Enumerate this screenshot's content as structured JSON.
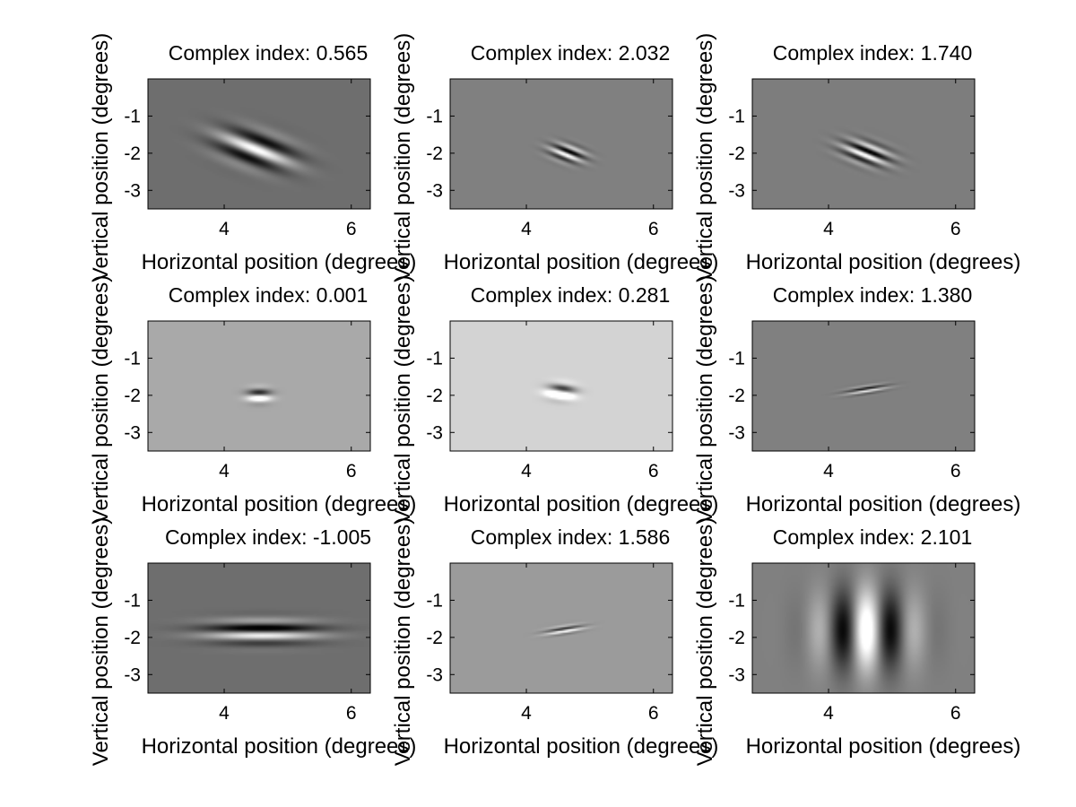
{
  "chart_data": [
    {
      "type": "heatmap",
      "title": "Complex index: 0.565",
      "xlabel": "Horizontal position (degrees)",
      "ylabel": "Vertical position (degrees)",
      "xlim": [
        2.8,
        6.3
      ],
      "ylim": [
        -3.5,
        0
      ],
      "xticks": [
        4,
        6
      ],
      "yticks": [
        -1,
        -2,
        -3
      ],
      "background": "#6e6e6e",
      "filter": {
        "center_x": 4.5,
        "center_y": -1.9,
        "sigma_major": 0.45,
        "sigma_minor": 0.28,
        "orientation_deg": -35,
        "wavelength": 0.55,
        "phase_deg": 0,
        "amplitude": 150
      }
    },
    {
      "type": "heatmap",
      "title": "Complex index: 2.032",
      "xlabel": "Horizontal position (degrees)",
      "ylabel": "Vertical position (degrees)",
      "xlim": [
        2.8,
        6.3
      ],
      "ylim": [
        -3.5,
        0
      ],
      "xticks": [
        4,
        6
      ],
      "yticks": [
        -1,
        -2,
        -3
      ],
      "background": "#808080",
      "filter": {
        "center_x": 4.65,
        "center_y": -2.0,
        "sigma_major": 0.2,
        "sigma_minor": 0.14,
        "orientation_deg": -35,
        "wavelength": 0.22,
        "phase_deg": 90,
        "amplitude": 160
      }
    },
    {
      "type": "heatmap",
      "title": "Complex index: 1.740",
      "xlabel": "Horizontal position (degrees)",
      "ylabel": "Vertical position (degrees)",
      "xlim": [
        2.8,
        6.3
      ],
      "ylim": [
        -3.5,
        0
      ],
      "xticks": [
        4,
        6
      ],
      "yticks": [
        -1,
        -2,
        -3
      ],
      "background": "#7d7d7d",
      "filter": {
        "center_x": 4.6,
        "center_y": -2.0,
        "sigma_major": 0.28,
        "sigma_minor": 0.18,
        "orientation_deg": -35,
        "wavelength": 0.25,
        "phase_deg": 90,
        "amplitude": 160
      }
    },
    {
      "type": "heatmap",
      "title": "Complex index: 0.001",
      "xlabel": "Horizontal position (degrees)",
      "ylabel": "Vertical position (degrees)",
      "xlim": [
        2.8,
        6.3
      ],
      "ylim": [
        -3.5,
        0
      ],
      "xticks": [
        4,
        6
      ],
      "yticks": [
        -1,
        -2,
        -3
      ],
      "background": "#a9a9a9",
      "filter": {
        "center_x": 4.55,
        "center_y": -2.0,
        "sigma_major": 0.13,
        "sigma_minor": 0.13,
        "orientation_deg": 0,
        "wavelength": 0.4,
        "phase_deg": 90,
        "amplitude": 170
      }
    },
    {
      "type": "heatmap",
      "title": "Complex index: 0.281",
      "xlabel": "Horizontal position (degrees)",
      "ylabel": "Vertical position (degrees)",
      "xlim": [
        2.8,
        6.3
      ],
      "ylim": [
        -3.5,
        0
      ],
      "xticks": [
        4,
        6
      ],
      "yticks": [
        -1,
        -2,
        -3
      ],
      "background": "#d3d3d3",
      "filter": {
        "center_x": 4.55,
        "center_y": -1.9,
        "sigma_major": 0.15,
        "sigma_minor": 0.14,
        "orientation_deg": -15,
        "wavelength": 0.45,
        "phase_deg": 90,
        "amplitude": 200
      }
    },
    {
      "type": "heatmap",
      "title": "Complex index: 1.380",
      "xlabel": "Horizontal position (degrees)",
      "ylabel": "Vertical position (degrees)",
      "xlim": [
        2.8,
        6.3
      ],
      "ylim": [
        -3.5,
        0
      ],
      "xticks": [
        4,
        6
      ],
      "yticks": [
        -1,
        -2,
        -3
      ],
      "background": "#808080",
      "filter": {
        "center_x": 4.6,
        "center_y": -1.85,
        "sigma_major": 0.22,
        "sigma_minor": 0.07,
        "orientation_deg": 15,
        "wavelength": 0.15,
        "phase_deg": 90,
        "amplitude": 140
      }
    },
    {
      "type": "heatmap",
      "title": "Complex index: -1.005",
      "xlabel": "Horizontal position (degrees)",
      "ylabel": "Vertical position (degrees)",
      "xlim": [
        2.8,
        6.3
      ],
      "ylim": [
        -3.5,
        0
      ],
      "xticks": [
        4,
        6
      ],
      "yticks": [
        -1,
        -2,
        -3
      ],
      "background": "#6e6e6e",
      "filter": {
        "center_x": 4.6,
        "center_y": -1.85,
        "sigma_major": 0.6,
        "sigma_minor": 0.22,
        "orientation_deg": 0,
        "wavelength": 0.45,
        "phase_deg": 90,
        "amplitude": 150
      }
    },
    {
      "type": "heatmap",
      "title": "Complex index: 1.586",
      "xlabel": "Horizontal position (degrees)",
      "ylabel": "Vertical position (degrees)",
      "xlim": [
        2.8,
        6.3
      ],
      "ylim": [
        -3.5,
        0
      ],
      "xticks": [
        4,
        6
      ],
      "yticks": [
        -1,
        -2,
        -3
      ],
      "background": "#9b9b9b",
      "filter": {
        "center_x": 4.6,
        "center_y": -1.8,
        "sigma_major": 0.2,
        "sigma_minor": 0.07,
        "orientation_deg": 15,
        "wavelength": 0.16,
        "phase_deg": 90,
        "amplitude": 150
      }
    },
    {
      "type": "heatmap",
      "title": "Complex index: 2.101",
      "xlabel": "Horizontal position (degrees)",
      "ylabel": "Vertical position (degrees)",
      "xlim": [
        2.8,
        6.3
      ],
      "ylim": [
        -3.5,
        0
      ],
      "xticks": [
        4,
        6
      ],
      "yticks": [
        -1,
        -2,
        -3
      ],
      "background": "#808080",
      "filter": {
        "center_x": 4.6,
        "center_y": -1.8,
        "sigma_major": 0.75,
        "sigma_minor": 0.5,
        "orientation_deg": 90,
        "wavelength": 0.8,
        "phase_deg": 0,
        "amplitude": 160
      }
    }
  ]
}
